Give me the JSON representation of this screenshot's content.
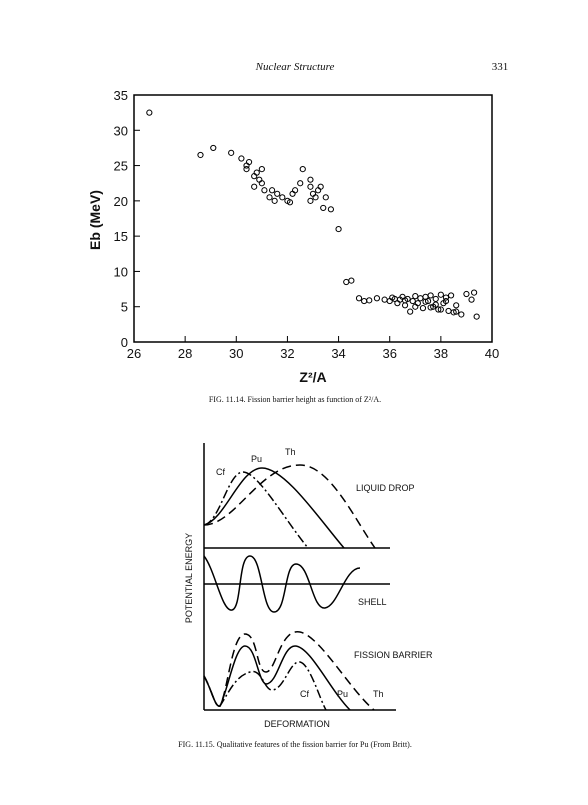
{
  "header": {
    "title": "Nuclear Structure",
    "page": "331"
  },
  "chart_data": {
    "type": "scatter",
    "x_label": "Z²/A",
    "y_label": "Eb (MeV)",
    "caption": "FIG. 11.14. Fission barrier height as function of Z²/A.",
    "color": "#000000",
    "x": [
      26.6,
      28.6,
      29.1,
      29.8,
      30.2,
      30.4,
      30.5,
      30.4,
      30.7,
      30.8,
      30.9,
      31.0,
      31.0,
      30.7,
      31.1,
      31.3,
      31.4,
      31.5,
      31.6,
      31.8,
      32.0,
      32.1,
      32.2,
      32.3,
      32.5,
      32.6,
      32.9,
      32.9,
      33.0,
      33.1,
      32.9,
      33.2,
      33.3,
      33.5,
      33.4,
      33.7,
      34.0,
      34.3,
      34.5,
      34.8,
      35.0,
      35.2,
      35.5,
      35.8,
      36.0,
      36.1,
      36.3,
      36.4,
      36.5,
      36.6,
      36.7,
      36.8,
      36.9,
      37.0,
      37.1,
      37.2,
      37.3,
      37.4,
      37.5,
      37.6,
      37.7,
      37.8,
      37.9,
      38.0,
      38.1,
      38.2,
      38.3,
      38.4,
      38.5,
      38.6,
      38.8,
      39.0,
      39.2,
      39.3,
      39.4,
      36.2,
      36.6,
      37.0,
      37.4,
      37.8,
      38.2,
      38.6,
      37.6,
      38.0
    ],
    "values": [
      32.5,
      26.5,
      27.5,
      26.8,
      26.0,
      25.0,
      25.5,
      24.5,
      23.5,
      24.0,
      23.0,
      24.5,
      22.5,
      22.0,
      21.5,
      20.5,
      21.5,
      20.0,
      21.0,
      20.5,
      20.0,
      19.8,
      21.0,
      21.5,
      22.5,
      24.5,
      23.0,
      22.0,
      21.0,
      20.5,
      20.0,
      21.5,
      22.0,
      20.5,
      19.0,
      18.8,
      16.0,
      8.5,
      8.7,
      6.2,
      5.8,
      5.9,
      6.2,
      6.0,
      5.8,
      6.3,
      5.5,
      6.0,
      6.4,
      5.2,
      6.1,
      4.3,
      5.8,
      6.5,
      5.5,
      6.2,
      4.8,
      6.4,
      5.8,
      6.6,
      5.0,
      6.1,
      4.6,
      6.7,
      5.5,
      6.3,
      4.4,
      6.6,
      4.2,
      4.3,
      3.9,
      6.8,
      6.0,
      7.0,
      3.6,
      6.1,
      5.9,
      5.0,
      5.7,
      5.3,
      5.8,
      5.2,
      4.9,
      4.6
    ],
    "xlim": [
      26,
      40
    ],
    "xticks": [
      26,
      28,
      30,
      32,
      34,
      36,
      38,
      40
    ],
    "ylim": [
      0,
      35
    ],
    "yticks": [
      0,
      5,
      10,
      15,
      20,
      25,
      30,
      35
    ]
  },
  "diagram": {
    "y_label": "POTENTIAL ENERGY",
    "x_label": "DEFORMATION",
    "labels": [
      "Th",
      "Pu",
      "Cf",
      "LIQUID DROP",
      "SHELL",
      "FISSION BARRIER",
      "Cf",
      "Pu",
      "Th"
    ],
    "caption": "FIG. 11.15. Qualitative features of the fission barrier for Pu (From Britt)."
  }
}
